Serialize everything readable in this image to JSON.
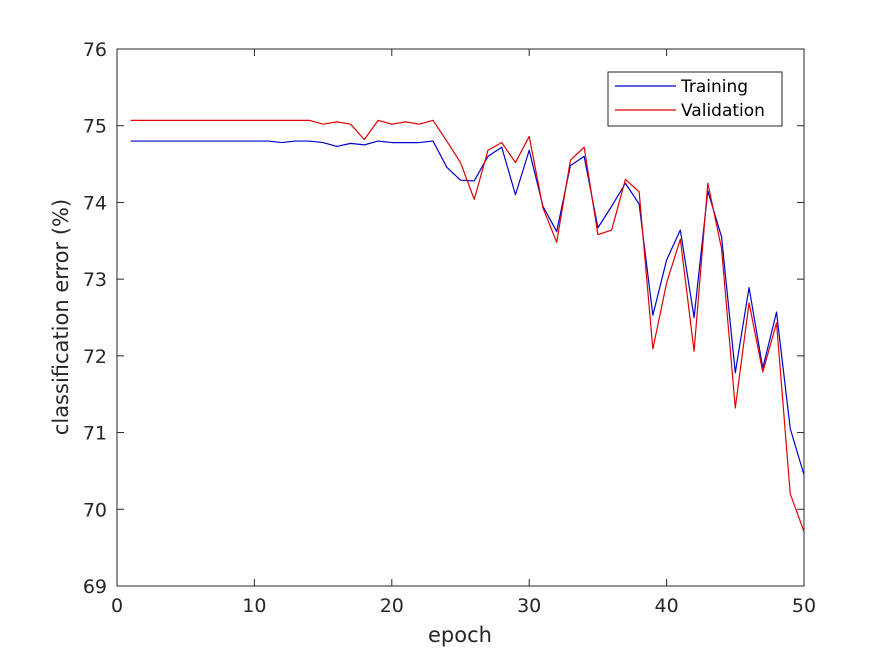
{
  "chart_data": {
    "type": "line",
    "title": "",
    "xlabel": "epoch",
    "ylabel": "classification error (%)",
    "xlim": [
      0,
      50
    ],
    "ylim": [
      69,
      76
    ],
    "xticks": [
      0,
      10,
      20,
      30,
      40,
      50
    ],
    "yticks": [
      69,
      70,
      71,
      72,
      73,
      74,
      75,
      76
    ],
    "grid": false,
    "legend_position": "top-right",
    "x": [
      1,
      2,
      3,
      4,
      5,
      6,
      7,
      8,
      9,
      10,
      11,
      12,
      13,
      14,
      15,
      16,
      17,
      18,
      19,
      20,
      21,
      22,
      23,
      24,
      25,
      26,
      27,
      28,
      29,
      30,
      31,
      32,
      33,
      34,
      35,
      36,
      37,
      38,
      39,
      40,
      41,
      42,
      43,
      44,
      45,
      46,
      47,
      48,
      49,
      50
    ],
    "series": [
      {
        "name": "Training",
        "color": "#0000cc",
        "values": [
          74.8,
          74.8,
          74.8,
          74.8,
          74.8,
          74.8,
          74.8,
          74.8,
          74.8,
          74.8,
          74.8,
          74.78,
          74.8,
          74.8,
          74.78,
          74.73,
          74.77,
          74.75,
          74.8,
          74.78,
          74.78,
          74.78,
          74.8,
          74.46,
          74.29,
          74.28,
          74.6,
          74.72,
          74.1,
          74.68,
          73.95,
          73.62,
          74.48,
          74.6,
          73.67,
          73.95,
          74.25,
          73.98,
          72.53,
          73.25,
          73.64,
          72.5,
          74.15,
          73.55,
          71.78,
          72.89,
          71.84,
          72.57,
          71.05,
          70.45
        ]
      },
      {
        "name": "Validation",
        "color": "#e00000",
        "values": [
          75.07,
          75.07,
          75.07,
          75.07,
          75.07,
          75.07,
          75.07,
          75.07,
          75.07,
          75.07,
          75.07,
          75.07,
          75.07,
          75.07,
          75.02,
          75.05,
          75.02,
          74.82,
          75.07,
          75.02,
          75.05,
          75.02,
          75.07,
          74.8,
          74.52,
          74.04,
          74.68,
          74.78,
          74.52,
          74.86,
          73.93,
          73.48,
          74.55,
          74.72,
          73.58,
          73.64,
          74.3,
          74.14,
          72.09,
          72.95,
          73.52,
          72.06,
          74.25,
          73.4,
          71.32,
          72.69,
          71.79,
          72.43,
          70.2,
          69.71
        ]
      }
    ]
  }
}
